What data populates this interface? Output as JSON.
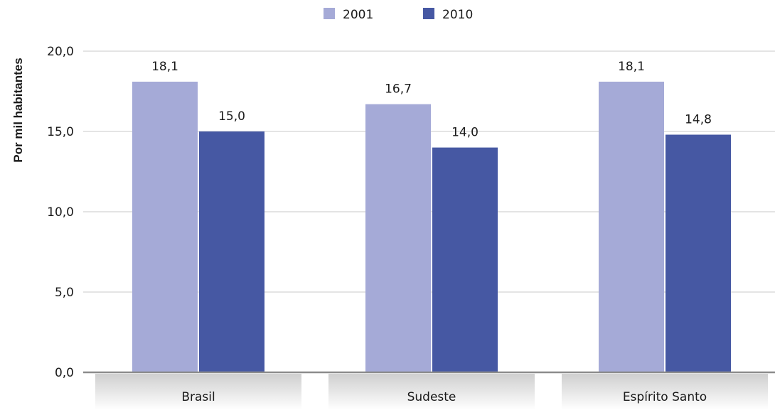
{
  "chart_data": {
    "type": "bar",
    "title": "",
    "xlabel": "",
    "ylabel": "Por mil habitantes",
    "categories": [
      "Brasil",
      "Sudeste",
      "Espírito Santo"
    ],
    "series": [
      {
        "name": "2001",
        "values": [
          18.1,
          16.7,
          18.1
        ],
        "labels": [
          "18,1",
          "16,7",
          "18,1"
        ],
        "color": "#a5aad7"
      },
      {
        "name": "2010",
        "values": [
          15.0,
          14.0,
          14.8
        ],
        "labels": [
          "15,0",
          "14,0",
          "14,8"
        ],
        "color": "#4658a3"
      }
    ],
    "ylim": [
      0,
      20
    ],
    "yticks": [
      0,
      5,
      10,
      15,
      20
    ],
    "ytick_labels": [
      "0,0",
      "5,0",
      "10,0",
      "15,0",
      "20,0"
    ],
    "grid": true,
    "legend_position": "top-center",
    "colors": {
      "grid": "#c8c8c8",
      "axis": "#8c8c8c"
    }
  }
}
